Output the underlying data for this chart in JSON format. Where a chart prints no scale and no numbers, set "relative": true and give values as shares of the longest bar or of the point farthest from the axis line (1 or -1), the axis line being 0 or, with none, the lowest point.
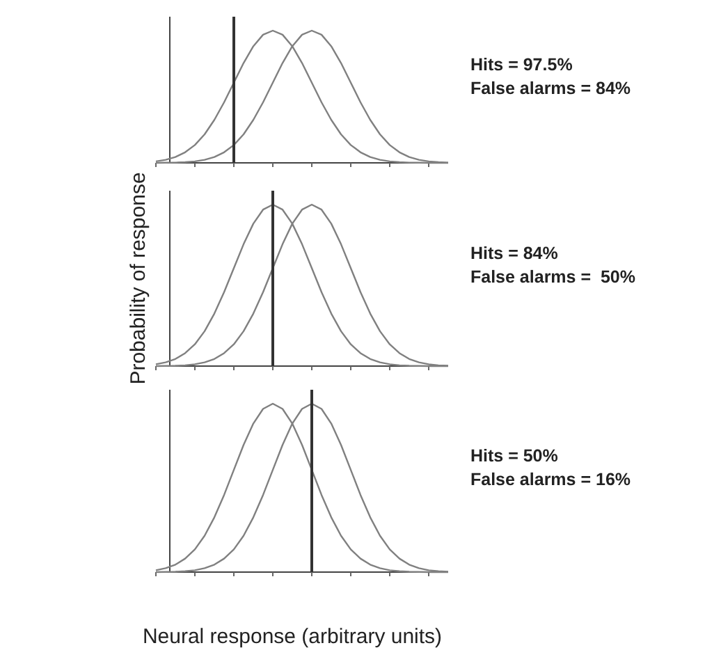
{
  "chart_data": [
    {
      "type": "line",
      "relative": true,
      "categories": [
        null,
        null,
        null,
        null,
        null,
        null,
        null,
        null,
        null,
        null,
        null,
        null,
        null,
        null,
        null,
        null,
        null,
        null,
        null,
        null,
        null,
        null,
        null,
        null,
        null,
        null,
        null,
        null,
        null,
        null,
        null
      ],
      "series": [
        {
          "color": "#808080",
          "values": [
            0.011,
            0.023,
            0.044,
            0.08,
            0.135,
            0.216,
            0.325,
            0.458,
            0.607,
            0.755,
            0.882,
            0.969,
            1,
            0.969,
            0.882,
            0.755,
            0.607,
            0.458,
            0.325,
            0.216,
            0.135,
            0.08,
            0.044,
            0.023,
            0.011,
            0.005,
            0.002,
            0.001,
            0,
            0,
            0
          ]
        },
        {
          "color": "#808080",
          "values": [
            0,
            0.001,
            0.002,
            0.005,
            0.011,
            0.023,
            0.044,
            0.08,
            0.135,
            0.216,
            0.325,
            0.458,
            0.607,
            0.755,
            0.882,
            0.969,
            1,
            0.969,
            0.882,
            0.755,
            0.607,
            0.458,
            0.325,
            0.216,
            0.135,
            0.08,
            0.044,
            0.023,
            0.011,
            0.005,
            0.002
          ]
        }
      ],
      "annotations": [
        "Hits = 97.5%",
        "False alarms = 84%"
      ]
    },
    {
      "type": "line",
      "relative": true,
      "ylabel": "Probability of response",
      "categories": [
        null,
        null,
        null,
        null,
        null,
        null,
        null,
        null,
        null,
        null,
        null,
        null,
        null,
        null,
        null,
        null,
        null,
        null,
        null,
        null,
        null,
        null,
        null,
        null,
        null,
        null,
        null,
        null,
        null,
        null,
        null
      ],
      "series": [
        {
          "color": "#808080",
          "values": [
            0.011,
            0.023,
            0.044,
            0.08,
            0.135,
            0.216,
            0.325,
            0.458,
            0.607,
            0.755,
            0.882,
            0.969,
            1,
            0.969,
            0.882,
            0.755,
            0.607,
            0.458,
            0.325,
            0.216,
            0.135,
            0.08,
            0.044,
            0.023,
            0.011,
            0.005,
            0.002,
            0.001,
            0,
            0,
            0
          ]
        },
        {
          "color": "#808080",
          "values": [
            0,
            0.001,
            0.002,
            0.005,
            0.011,
            0.023,
            0.044,
            0.08,
            0.135,
            0.216,
            0.325,
            0.458,
            0.607,
            0.755,
            0.882,
            0.969,
            1,
            0.969,
            0.882,
            0.755,
            0.607,
            0.458,
            0.325,
            0.216,
            0.135,
            0.08,
            0.044,
            0.023,
            0.011,
            0.005,
            0.002
          ]
        }
      ],
      "annotations": [
        "Hits = 84%",
        "False alarms =  50%"
      ]
    },
    {
      "type": "line",
      "relative": true,
      "xlabel": "Neural response (arbitrary units)",
      "categories": [
        null,
        null,
        null,
        null,
        null,
        null,
        null,
        null,
        null,
        null,
        null,
        null,
        null,
        null,
        null,
        null,
        null,
        null,
        null,
        null,
        null,
        null,
        null,
        null,
        null,
        null,
        null,
        null,
        null,
        null,
        null
      ],
      "series": [
        {
          "color": "#808080",
          "values": [
            0.011,
            0.023,
            0.044,
            0.08,
            0.135,
            0.216,
            0.325,
            0.458,
            0.607,
            0.755,
            0.882,
            0.969,
            1,
            0.969,
            0.882,
            0.755,
            0.607,
            0.458,
            0.325,
            0.216,
            0.135,
            0.08,
            0.044,
            0.023,
            0.011,
            0.005,
            0.002,
            0.001,
            0,
            0,
            0
          ]
        },
        {
          "color": "#808080",
          "values": [
            0,
            0.001,
            0.002,
            0.005,
            0.011,
            0.023,
            0.044,
            0.08,
            0.135,
            0.216,
            0.325,
            0.458,
            0.607,
            0.755,
            0.882,
            0.969,
            1,
            0.969,
            0.882,
            0.755,
            0.607,
            0.458,
            0.325,
            0.216,
            0.135,
            0.08,
            0.044,
            0.023,
            0.011,
            0.005,
            0.002
          ]
        }
      ],
      "annotations": [
        "Hits = 50%",
        "False alarms = 16%"
      ]
    }
  ]
}
